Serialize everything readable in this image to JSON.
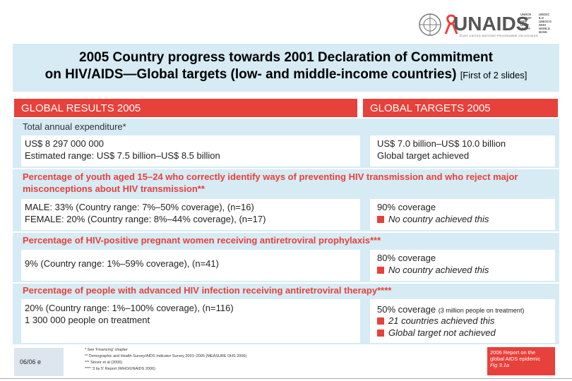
{
  "logo": {
    "word": "UNAIDS",
    "subtitle": "JOINT UNITED NATIONS PROGRAMME ON HIV/AIDS",
    "cosponsors_col1": [
      "UNHCR",
      "UNICEF",
      "WFP",
      "UNDP",
      "UNFPA"
    ],
    "cosponsors_col2": [
      "UNODC",
      "ILO",
      "UNESCO",
      "WHO",
      "WORLD BANK"
    ],
    "ribbon_color": "#e8403a"
  },
  "title": {
    "line1": "2005 Country progress towards 2001 Declaration of Commitment",
    "line2": "on HIV/AIDS—Global targets (low- and middle-income countries)",
    "line2_small": "[First of 2 slides]"
  },
  "headers": {
    "left": "GLOBAL RESULTS 2005",
    "right": "GLOBAL TARGETS 2005"
  },
  "sections": [
    {
      "title": "Total annual expenditure*",
      "left": [
        "US$ 8 297 000 000",
        "Estimated range: US$ 7.5 billion–US$ 8.5 billion"
      ],
      "right": [
        "US$ 7.0 billion–US$ 10.0 billion",
        "Global target achieved"
      ]
    },
    {
      "title": "Percentage of youth aged 15–24 who correctly identify ways of preventing HIV transmission and who reject major",
      "title2": "misconceptions about HIV transmission**",
      "left": [
        "MALE: 33% (Country range: 7%–50% coverage), (n=16)",
        "FEMALE: 20% (Country range: 8%–44% coverage), (n=17)"
      ],
      "right": [
        "90% coverage",
        "No country achieved this"
      ]
    },
    {
      "title": "Percentage of HIV-positive pregnant women receiving antiretroviral prophylaxis***",
      "left": [
        "9% (Country range: 1%–59% coverage), (n=41)"
      ],
      "right": [
        "80% coverage",
        "No country achieved this"
      ]
    },
    {
      "title": "Percentage of people with advanced HIV infection receiving antiretroviral therapy****",
      "left": [
        "20% (Country range: 1%–100% coverage), (n=116)",
        "1 300 000 people on treatment"
      ],
      "right": [
        "50% coverage",
        "(3 million people on treatment)",
        "21 countries achieved this",
        "Global target not achieved"
      ]
    }
  ],
  "footer": {
    "date": "06/06 e",
    "notes": [
      "* See 'Financing' chapter",
      "** Demographic and Health Survey/AIDS Indicator Survey 2001–2005 (MEASURE DHS 2006)",
      "*** Stover et al (2006)",
      "**** '3 by 5' Report (WHO/UNAIDS 2006)"
    ],
    "report": [
      "2006 Report on the",
      "global AIDS epidemic",
      "Fig 3.1a"
    ]
  }
}
